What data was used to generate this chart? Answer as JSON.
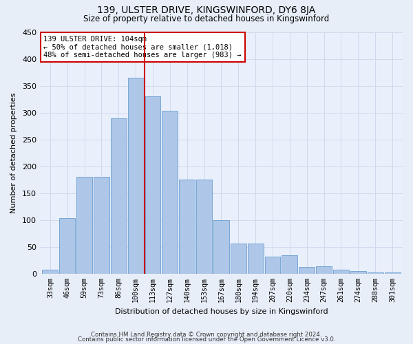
{
  "title": "139, ULSTER DRIVE, KINGSWINFORD, DY6 8JA",
  "subtitle": "Size of property relative to detached houses in Kingswinford",
  "xlabel": "Distribution of detached houses by size in Kingswinford",
  "ylabel": "Number of detached properties",
  "footnote1": "Contains HM Land Registry data © Crown copyright and database right 2024.",
  "footnote2": "Contains public sector information licensed under the Open Government Licence v3.0.",
  "annotation_line1": "139 ULSTER DRIVE: 104sqm",
  "annotation_line2": "← 50% of detached houses are smaller (1,018)",
  "annotation_line3": "48% of semi-detached houses are larger (983) →",
  "categories": [
    "33sqm",
    "46sqm",
    "59sqm",
    "73sqm",
    "86sqm",
    "100sqm",
    "113sqm",
    "127sqm",
    "140sqm",
    "153sqm",
    "167sqm",
    "180sqm",
    "194sqm",
    "207sqm",
    "220sqm",
    "234sqm",
    "247sqm",
    "261sqm",
    "274sqm",
    "288sqm",
    "301sqm"
  ],
  "values": [
    8,
    104,
    181,
    181,
    290,
    365,
    330,
    303,
    175,
    175,
    100,
    57,
    57,
    32,
    35,
    13,
    15,
    8,
    5,
    3,
    3
  ],
  "bar_color": "#aec6e8",
  "bar_edge_color": "#6a9fd0",
  "vline_color": "#cc0000",
  "vline_x_index": 5,
  "bg_color": "#eaf0fb",
  "grid_color": "#d0d8ee",
  "annotation_box_color": "#ffffff",
  "annotation_box_edge": "#cc0000",
  "fig_bg_color": "#e8eef8",
  "ylim": [
    0,
    450
  ],
  "yticks": [
    0,
    50,
    100,
    150,
    200,
    250,
    300,
    350,
    400,
    450
  ]
}
